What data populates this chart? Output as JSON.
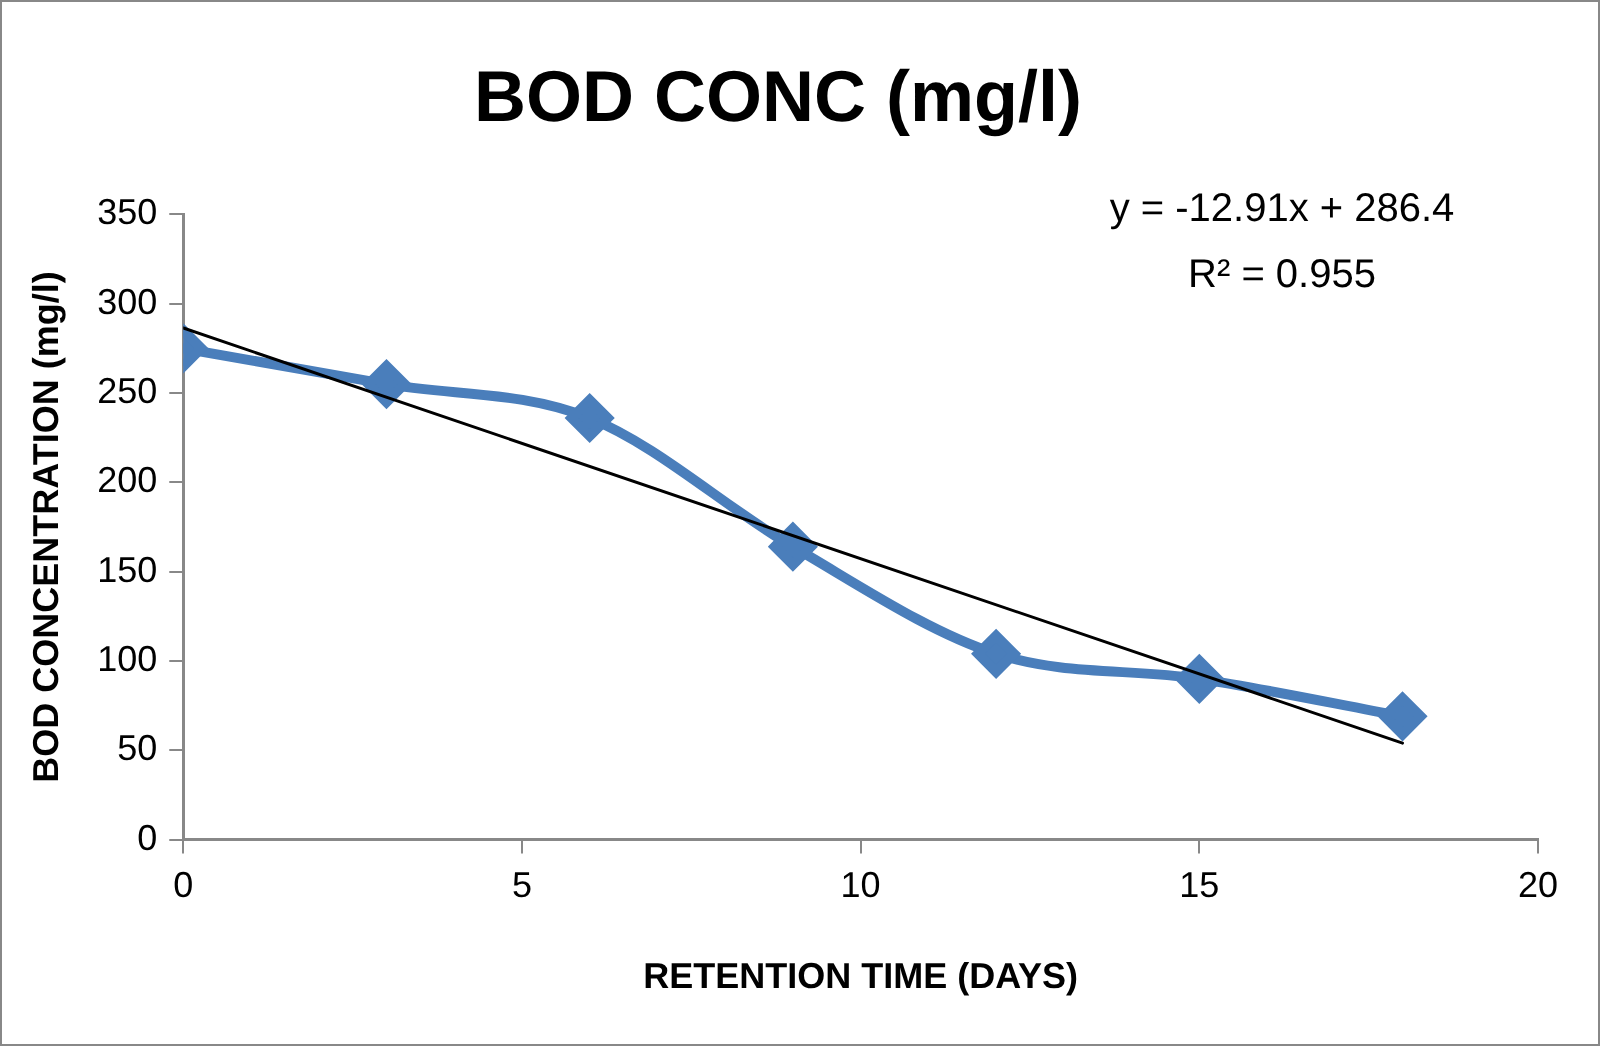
{
  "chart_data": {
    "type": "line",
    "title": "BOD CONC (mg/l)",
    "xlabel": "RETENTION TIME (DAYS)",
    "ylabel": "BOD CONCENTRATION (mg/l)",
    "x": [
      0,
      3,
      6,
      9,
      12,
      15,
      18
    ],
    "series": [
      {
        "color": "#4a7ebb",
        "values": [
          275,
          255,
          236,
          164,
          104,
          90,
          69
        ],
        "marker": "diamond"
      },
      {
        "type": "line",
        "color": "#000000",
        "x": [
          0,
          18
        ],
        "values": [
          286.4,
          54.0
        ],
        "marker": "none"
      }
    ],
    "xlim": [
      0,
      20
    ],
    "xticks": [
      0,
      5,
      10,
      15,
      20
    ],
    "ylim": [
      0,
      350
    ],
    "yticks": [
      0,
      50,
      100,
      150,
      200,
      250,
      300,
      350
    ],
    "annotations": [
      "y = -12.91x + 286.4",
      "R² = 0.955"
    ]
  }
}
